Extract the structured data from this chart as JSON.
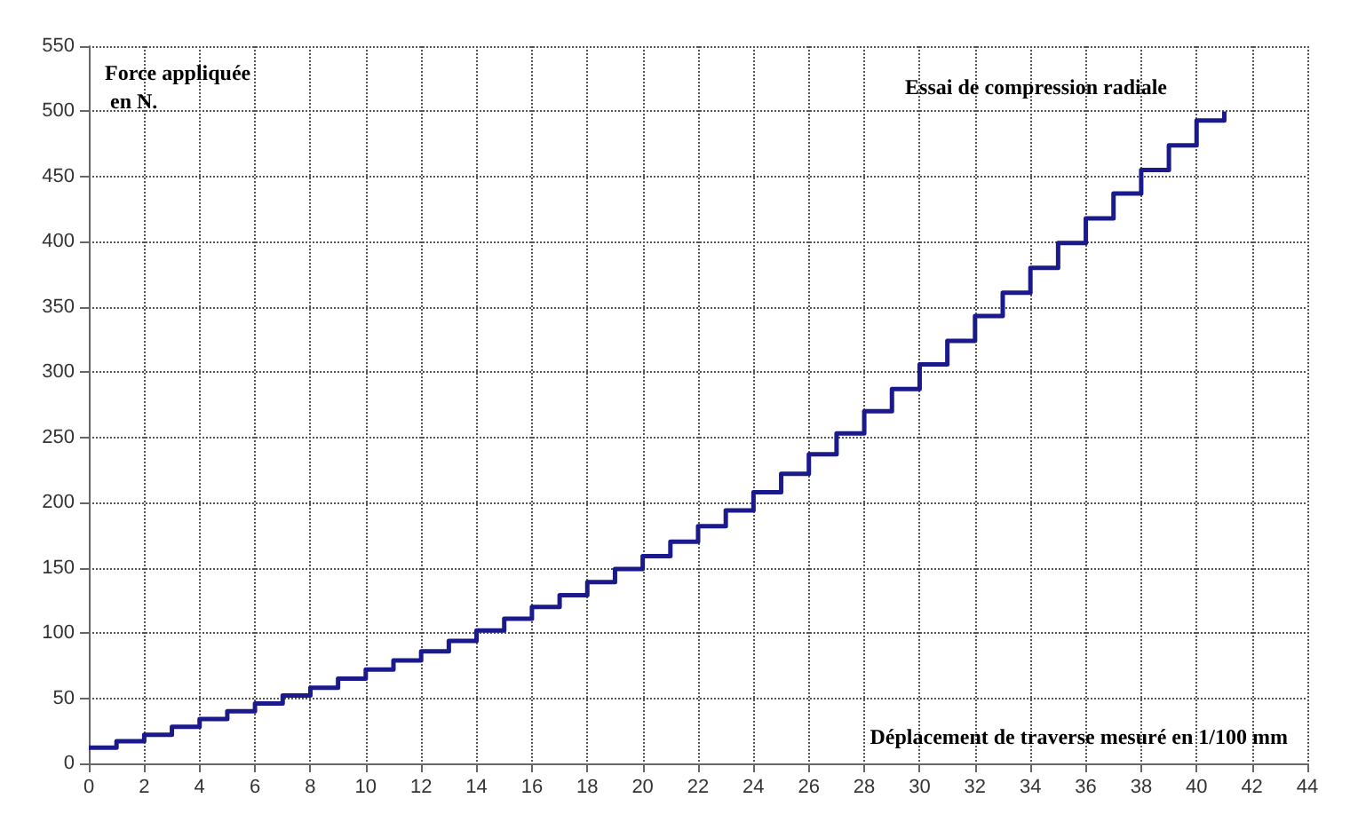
{
  "chart_data": {
    "type": "step",
    "title": "Essai de compression radiale",
    "xlabel": "Déplacement de traverse mesuré en 1/100 mm",
    "ylabel": "Force appliquée en N.",
    "x": [
      0,
      1,
      2,
      3,
      4,
      5,
      6,
      7,
      8,
      9,
      10,
      11,
      12,
      13,
      14,
      15,
      16,
      17,
      18,
      19,
      20,
      21,
      22,
      23,
      24,
      25,
      26,
      27,
      28,
      29,
      30,
      31,
      32,
      33,
      34,
      35,
      36,
      37,
      38,
      39,
      40,
      41
    ],
    "series": [
      {
        "color": "#1a1a8c",
        "values": [
          12,
          17,
          22,
          28,
          34,
          40,
          46,
          52,
          58,
          65,
          72,
          79,
          86,
          94,
          102,
          111,
          120,
          129,
          139,
          149,
          159,
          170,
          182,
          194,
          208,
          222,
          237,
          253,
          270,
          287,
          306,
          324,
          343,
          361,
          380,
          399,
          418,
          437,
          455,
          474,
          493,
          500
        ]
      }
    ],
    "xlim": [
      0,
      44
    ],
    "xticks": [
      0,
      2,
      4,
      6,
      8,
      10,
      12,
      14,
      16,
      18,
      20,
      22,
      24,
      26,
      28,
      30,
      32,
      34,
      36,
      38,
      40,
      42,
      44
    ],
    "ylim": [
      0,
      550
    ],
    "yticks": [
      0,
      50,
      100,
      150,
      200,
      250,
      300,
      350,
      400,
      450,
      500,
      550
    ],
    "grid": true,
    "marker": "none",
    "line_style": "solid"
  }
}
